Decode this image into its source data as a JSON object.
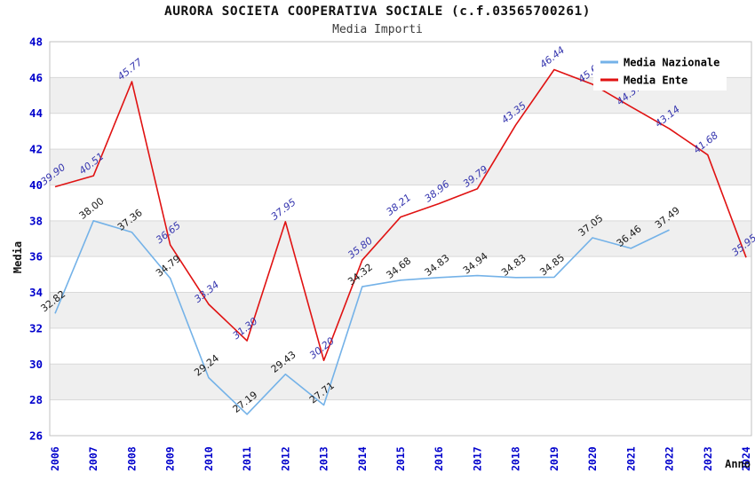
{
  "header": {
    "title": "AURORA SOCIETA COOPERATIVA SOCIALE (c.f.03565700261)",
    "subtitle": "Media Importi"
  },
  "axes": {
    "x_title": "Anno",
    "y_title": "Media"
  },
  "legend": {
    "items": [
      {
        "label": "Media Nazionale",
        "color": "#74b2e8"
      },
      {
        "label": "Media Ente",
        "color": "#e01212"
      }
    ]
  },
  "colors": {
    "tick_label": "#0000cc",
    "band_gray": "#efefef",
    "grid_line": "#d9d9d9",
    "plot_border": "#c2c2c2",
    "nazionale_line": "#74b2e8",
    "ente_line": "#e01212",
    "nazionale_point_label": "#1a1a1a",
    "ente_point_label": "#3434ae",
    "legend_bg": "#ffffff"
  },
  "chart_data": {
    "type": "line",
    "title": "AURORA SOCIETA COOPERATIVA SOCIALE (c.f.03565700261)",
    "subtitle": "Media Importi",
    "xlabel": "Anno",
    "ylabel": "Media",
    "ylim": [
      26,
      48
    ],
    "ytick_step": 2,
    "grid": true,
    "legend_position": "top-right",
    "categories": [
      "2006",
      "2007",
      "2008",
      "2009",
      "2010",
      "2011",
      "2012",
      "2013",
      "2014",
      "2015",
      "2016",
      "2017",
      "2018",
      "2019",
      "2020",
      "2021",
      "2022",
      "2023",
      "2024"
    ],
    "series": [
      {
        "name": "Media Nazionale",
        "color": "#74b2e8",
        "label_color": "#1a1a1a",
        "label_style": "normal",
        "values": [
          32.82,
          38.0,
          37.36,
          34.79,
          29.24,
          27.19,
          29.43,
          27.71,
          34.32,
          34.68,
          34.83,
          34.94,
          34.83,
          34.85,
          37.05,
          36.46,
          37.49,
          null,
          null
        ]
      },
      {
        "name": "Media Ente",
        "color": "#e01212",
        "label_color": "#3434ae",
        "label_style": "italic",
        "values": [
          39.9,
          40.51,
          45.77,
          36.65,
          33.34,
          31.3,
          37.95,
          30.2,
          35.8,
          38.21,
          38.96,
          39.79,
          43.35,
          46.44,
          45.62,
          44.37,
          43.14,
          41.68,
          35.95
        ]
      }
    ]
  }
}
